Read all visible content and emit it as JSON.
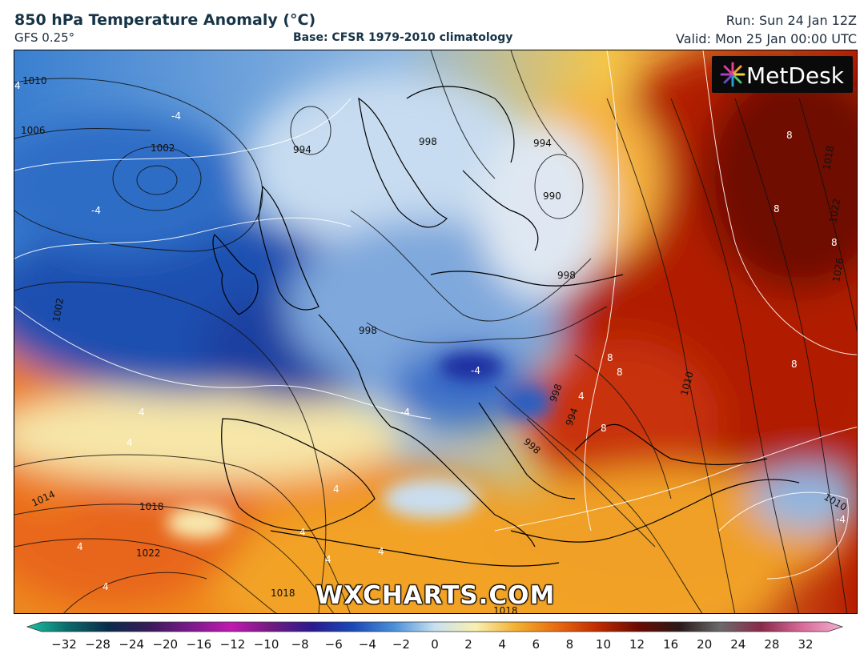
{
  "header": {
    "title": "850 hPa Temperature Anomaly (°C)",
    "model": "GFS 0.25°",
    "base": "Base: CFSR 1979-2010 climatology",
    "run": "Run: Sun 24 Jan 12Z",
    "valid": "Valid: Mon 25 Jan 00:00 UTC"
  },
  "branding": {
    "logo": "MetDesk",
    "watermark": "WXCHARTS.COM"
  },
  "pressure_labels": [
    "1010",
    "1006",
    "1002",
    "994",
    "998",
    "994",
    "990",
    "998",
    "998",
    "1002",
    "998",
    "1014",
    "1018",
    "1022",
    "1018",
    "1018",
    "1010",
    "1018",
    "1022",
    "1026",
    "1010",
    "998",
    "994"
  ],
  "anomaly_labels": [
    "4",
    "-4",
    "-4",
    "8",
    "8",
    "8",
    "8",
    "8",
    "8",
    "8",
    "4",
    "4",
    "-4",
    "4",
    "4",
    "4",
    "4",
    "4",
    "4",
    "-4",
    "4",
    "-4"
  ],
  "colorbar": {
    "ticks": [
      "-32",
      "-28",
      "-24",
      "-20",
      "-16",
      "-12",
      "-10",
      "-8",
      "-6",
      "-4",
      "-2",
      "0",
      "2",
      "4",
      "6",
      "8",
      "10",
      "12",
      "16",
      "20",
      "24",
      "28",
      "32"
    ]
  }
}
